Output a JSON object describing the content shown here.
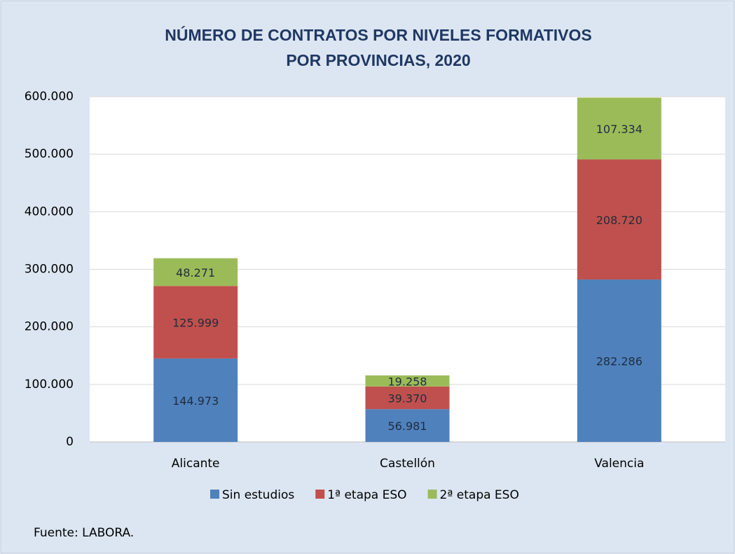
{
  "chart_data": {
    "type": "stacked_bar",
    "title": [
      "NÚMERO DE CONTRATOS POR NIVELES FORMATIVOS",
      "POR PROVINCIAS, 2020"
    ],
    "categories": [
      "Alicante",
      "Castellón",
      "Valencia"
    ],
    "series": [
      {
        "name": "Sin estudios",
        "color": "#4f81bd",
        "values": [
          144973,
          56981,
          282286
        ],
        "value_labels": [
          "144.973",
          "56.981",
          "282.286"
        ]
      },
      {
        "name": "1ª etapa ESO",
        "color": "#c0504d",
        "values": [
          125999,
          39370,
          208720
        ],
        "value_labels": [
          "125.999",
          "39.370",
          "208.720"
        ]
      },
      {
        "name": "2ª etapa ESO",
        "color": "#9bbb59",
        "values": [
          48271,
          19258,
          107334
        ],
        "value_labels": [
          "48.271",
          "19.258",
          "107.334"
        ]
      }
    ],
    "ylim": [
      0,
      600000
    ],
    "yticks": [
      0,
      {
        "value": 100000,
        "label": "100.000"
      },
      {
        "value": 200000,
        "label": "200.000"
      },
      {
        "value": 300000,
        "label": "300.000"
      },
      {
        "value": 400000,
        "label": "400.000"
      },
      {
        "value": 500000,
        "label": "500.000"
      },
      {
        "value": 600000,
        "label": "600.000"
      }
    ],
    "grid": true,
    "legend": "bottom",
    "source": "Fuente: LABORA."
  }
}
